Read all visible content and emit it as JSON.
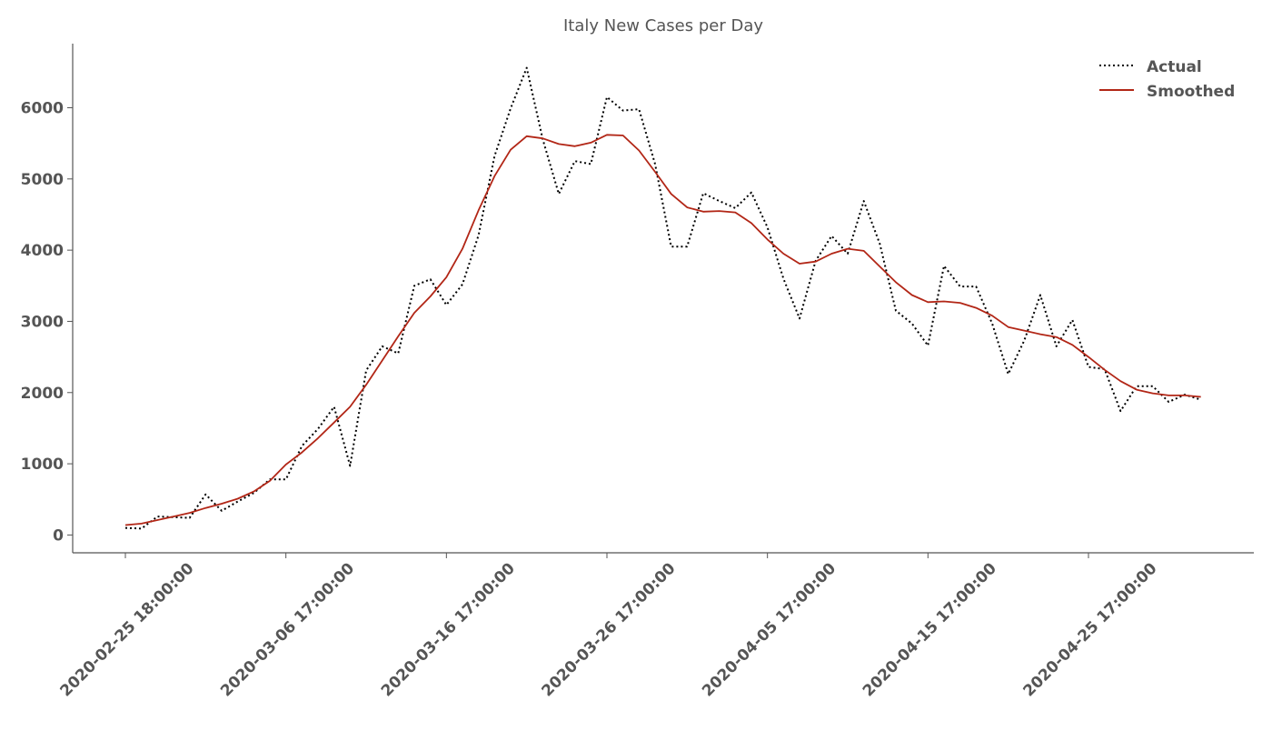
{
  "chart_data": {
    "type": "line",
    "title": "Italy New Cases per Day",
    "xlabel": "",
    "ylabel": "",
    "x_start": "2020-02-25",
    "x_end": "2020-05-03",
    "xlim": [
      0,
      71
    ],
    "ylim": [
      -250,
      6900
    ],
    "y_ticks": [
      0,
      1000,
      2000,
      3000,
      4000,
      5000,
      6000
    ],
    "x_ticks": [
      {
        "index": 0,
        "label": "2020-02-25 18:00:00"
      },
      {
        "index": 10,
        "label": "2020-03-06 17:00:00"
      },
      {
        "index": 20,
        "label": "2020-03-16 17:00:00"
      },
      {
        "index": 30,
        "label": "2020-03-26 17:00:00"
      },
      {
        "index": 40,
        "label": "2020-04-05 17:00:00"
      },
      {
        "index": 50,
        "label": "2020-04-15 17:00:00"
      },
      {
        "index": 60,
        "label": "2020-04-25 17:00:00"
      }
    ],
    "legend_position": "top-right",
    "series": [
      {
        "name": "Actual",
        "color": "#000000",
        "style": "dotted",
        "values": [
          100,
          90,
          260,
          250,
          240,
          570,
          340,
          470,
          590,
          780,
          780,
          1250,
          1490,
          1800,
          970,
          2310,
          2650,
          2550,
          3500,
          3590,
          3230,
          3520,
          4210,
          5320,
          5990,
          6560,
          5560,
          4790,
          5250,
          5210,
          6150,
          5960,
          5980,
          5210,
          4050,
          4050,
          4800,
          4690,
          4590,
          4810,
          4320,
          3600,
          3040,
          3850,
          4200,
          3950,
          4690,
          4090,
          3150,
          2970,
          2660,
          3780,
          3490,
          3490,
          2970,
          2260,
          2730,
          3370,
          2650,
          3020,
          2360,
          2330,
          1740,
          2090,
          2090,
          1870,
          1970,
          1900
        ]
      },
      {
        "name": "Smoothed",
        "color": "#b22616",
        "style": "solid",
        "values": [
          140,
          160,
          210,
          260,
          310,
          380,
          440,
          510,
          610,
          760,
          990,
          1160,
          1360,
          1580,
          1800,
          2110,
          2450,
          2790,
          3120,
          3350,
          3620,
          4020,
          4560,
          5040,
          5410,
          5600,
          5570,
          5490,
          5460,
          5510,
          5620,
          5610,
          5400,
          5100,
          4790,
          4600,
          4540,
          4550,
          4530,
          4380,
          4150,
          3950,
          3810,
          3840,
          3950,
          4020,
          3990,
          3770,
          3550,
          3370,
          3270,
          3280,
          3260,
          3190,
          3080,
          2920,
          2870,
          2820,
          2780,
          2670,
          2500,
          2320,
          2160,
          2040,
          1990,
          1960,
          1960,
          1940
        ]
      }
    ]
  }
}
